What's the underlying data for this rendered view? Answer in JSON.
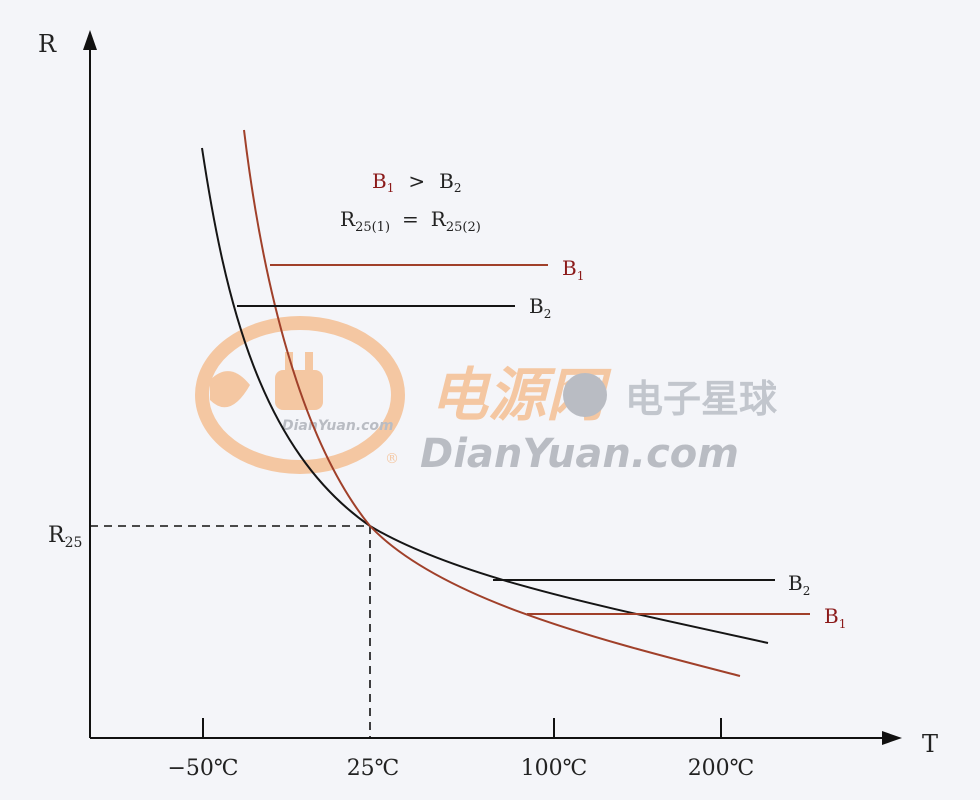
{
  "axes": {
    "y_label": "R",
    "x_label": "T",
    "r25_label": "R",
    "r25_sub": "25",
    "x_ticks": [
      "−50℃",
      "25℃",
      "100℃",
      "200℃"
    ]
  },
  "annotation": {
    "line1": {
      "b1": "B",
      "b1_sub": "1",
      "op": ">",
      "b2": "B",
      "b2_sub": "2"
    },
    "line2": {
      "r1": "R",
      "r1_sub": "25(1)",
      "op": "=",
      "r2": "R",
      "r2_sub": "25(2)"
    }
  },
  "legend": {
    "upper_b1": {
      "text": "B",
      "sub": "1"
    },
    "upper_b2": {
      "text": "B",
      "sub": "2"
    },
    "lower_b2": {
      "text": "B",
      "sub": "2"
    },
    "lower_b1": {
      "text": "B",
      "sub": "1"
    }
  },
  "watermark": {
    "cn_text": "电源网",
    "en_text": "DianYuan.com",
    "small_text": "DianYuan.com",
    "star_text": "电子星球",
    "registered": "®"
  },
  "colors": {
    "b1_curve": "#a0402a",
    "b2_curve": "#151515",
    "axis": "#111111",
    "watermark_orange": "#f5a25c",
    "watermark_gray": "#8a8f98",
    "background": "#f4f5f9"
  }
}
